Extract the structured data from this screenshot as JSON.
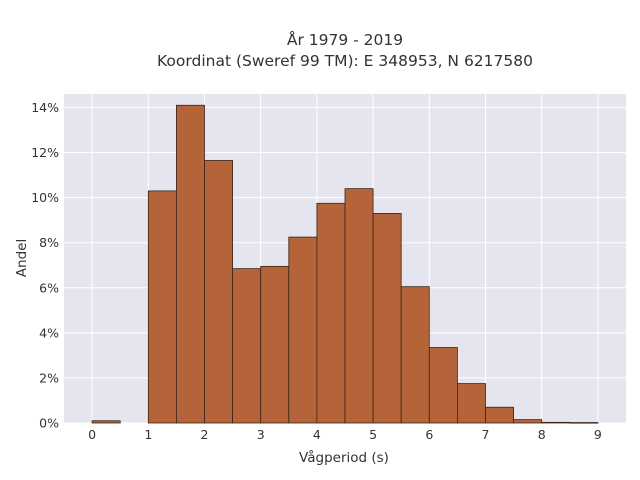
{
  "chart_data": {
    "type": "bar",
    "title_line1": "År 1979 - 2019",
    "title_line2": "Koordinat (Sweref 99 TM): E 348953, N 6217580",
    "xlabel": "Vågperiod (s)",
    "ylabel": "Andel",
    "x_ticks": [
      "0",
      "1",
      "2",
      "3",
      "4",
      "5",
      "6",
      "7",
      "8",
      "9"
    ],
    "y_ticks": [
      "0%",
      "2%",
      "4%",
      "6%",
      "8%",
      "10%",
      "12%",
      "14%"
    ],
    "xlim": [
      -0.5,
      9.5
    ],
    "ylim": [
      0,
      14.6
    ],
    "bin_width": 0.5,
    "bins": [
      {
        "x0": 0.0,
        "value": 0.1
      },
      {
        "x0": 0.5,
        "value": 0.0
      },
      {
        "x0": 1.0,
        "value": 10.3
      },
      {
        "x0": 1.5,
        "value": 14.1
      },
      {
        "x0": 2.0,
        "value": 11.65
      },
      {
        "x0": 2.5,
        "value": 6.85
      },
      {
        "x0": 3.0,
        "value": 6.95
      },
      {
        "x0": 3.5,
        "value": 8.25
      },
      {
        "x0": 4.0,
        "value": 9.75
      },
      {
        "x0": 4.5,
        "value": 10.4
      },
      {
        "x0": 5.0,
        "value": 9.3
      },
      {
        "x0": 5.5,
        "value": 6.05
      },
      {
        "x0": 6.0,
        "value": 3.35
      },
      {
        "x0": 6.5,
        "value": 1.75
      },
      {
        "x0": 7.0,
        "value": 0.7
      },
      {
        "x0": 7.5,
        "value": 0.15
      },
      {
        "x0": 8.0,
        "value": 0.03
      },
      {
        "x0": 8.5,
        "value": 0.02
      }
    ],
    "grid": true,
    "colors": {
      "bar_fill": "#b5643a",
      "bar_stroke": "#3a2418",
      "plot_bg": "#e5e5ef",
      "grid": "#ffffff"
    }
  }
}
